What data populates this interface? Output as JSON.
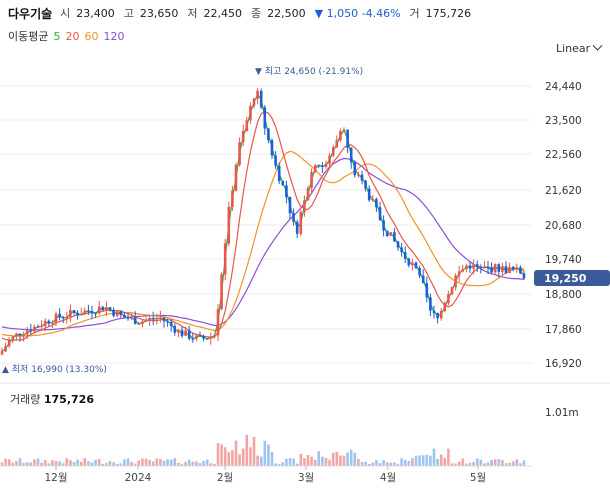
{
  "header": {
    "stock_name": "다우기술",
    "open_label": "시",
    "open": "23,400",
    "high_label": "고",
    "high": "23,650",
    "low_label": "저",
    "low": "22,450",
    "close_label": "종",
    "close": "22,500",
    "change": "▼ 1,050 -4.46%",
    "volume_label": "거",
    "volume": "175,726"
  },
  "ma_legend": {
    "title": "이동평균",
    "periods": [
      {
        "label": "5",
        "color": "#2eaa46"
      },
      {
        "label": "20",
        "color": "#e7574a"
      },
      {
        "label": "60",
        "color": "#f0932b"
      },
      {
        "label": "120",
        "color": "#8a4fd8"
      }
    ]
  },
  "scale_selector": {
    "value": "Linear"
  },
  "price_axis": {
    "ticks": [
      "24,440",
      "23,500",
      "22,560",
      "21,620",
      "20,680",
      "19,740",
      "18,800",
      "17,860",
      "16,920"
    ],
    "current_price_badge": "19,250"
  },
  "annotations": {
    "high_marker": "▼ 최고 24,650 (-21.91%)",
    "low_marker": "▲ 최저 16,990 (13.30%)"
  },
  "volume_panel": {
    "title": "거래량",
    "value": "175,726",
    "axis_tick": "1.01m"
  },
  "time_axis": {
    "labels": [
      "12월",
      "2024",
      "2월",
      "3월",
      "4월",
      "5월"
    ]
  },
  "colors": {
    "up": "#e7574a",
    "down": "#1f5fd6",
    "vol_up": "#f2a5a5",
    "vol_down": "#9ec3ee",
    "badge_bg": "#3a5a99"
  },
  "chart_data": {
    "type": "candlestick",
    "ylim": [
      16800,
      24700
    ],
    "moving_averages": [
      "5",
      "20",
      "60",
      "120"
    ],
    "key_points": [
      {
        "date": "최고",
        "price": 24650
      },
      {
        "date": "최저",
        "price": 16990
      }
    ],
    "last_price": 19250
  }
}
